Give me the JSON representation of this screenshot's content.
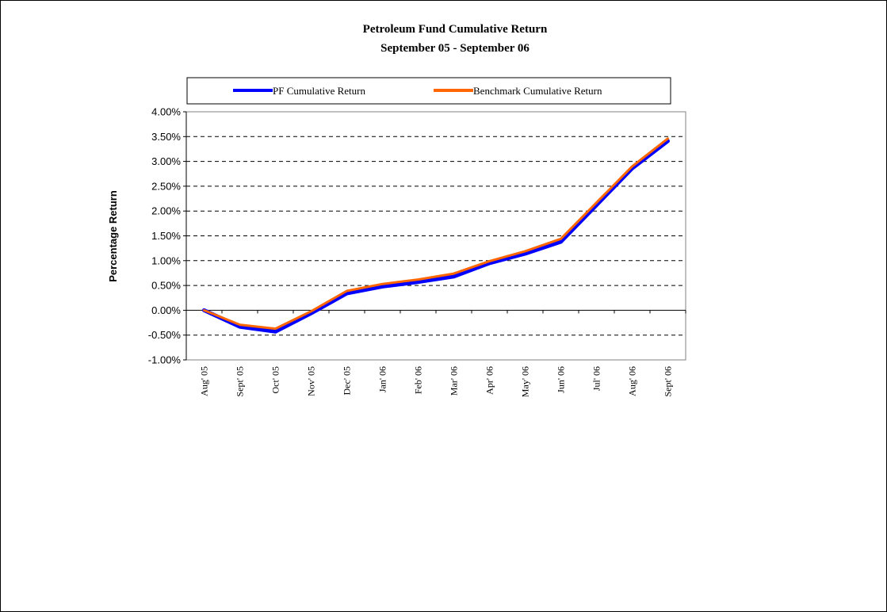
{
  "chart_data": {
    "type": "line",
    "title": "Petroleum Fund Cumulative Return",
    "subtitle": "September 05 - September 06",
    "xlabel": "",
    "ylabel": "Percentage Return",
    "categories": [
      "Aug' 05",
      "Sept' 05",
      "Oct' 05",
      "Nov' 05",
      "Dec' 05",
      "Jan' 06",
      "Feb' 06",
      "Mar' 06",
      "Apr' 06",
      "May' 06",
      "Jun' 06",
      "Jul' 06",
      "Aug' 06",
      "Sept' 06"
    ],
    "ylim": [
      -1.0,
      4.0
    ],
    "yticks": [
      -1.0,
      -0.5,
      0.0,
      0.5,
      1.0,
      1.5,
      2.0,
      2.5,
      3.0,
      3.5,
      4.0
    ],
    "ytick_labels": [
      "-1.00%",
      "-0.50%",
      "0.00%",
      "0.50%",
      "1.00%",
      "1.50%",
      "2.00%",
      "2.50%",
      "3.00%",
      "3.50%",
      "4.00%"
    ],
    "grid": "horizontal dashed",
    "legend_position": "top",
    "series": [
      {
        "name": "PF Cumulative Return",
        "color": "#0000ff",
        "values": [
          0.0,
          -0.33,
          -0.43,
          -0.06,
          0.34,
          0.48,
          0.57,
          0.68,
          0.95,
          1.14,
          1.38,
          2.12,
          2.86,
          3.41
        ]
      },
      {
        "name": "Benchmark Cumulative Return",
        "color": "#ff6600",
        "values": [
          0.0,
          -0.29,
          -0.37,
          -0.02,
          0.39,
          0.53,
          0.62,
          0.74,
          0.99,
          1.19,
          1.44,
          2.17,
          2.9,
          3.46
        ]
      }
    ]
  }
}
